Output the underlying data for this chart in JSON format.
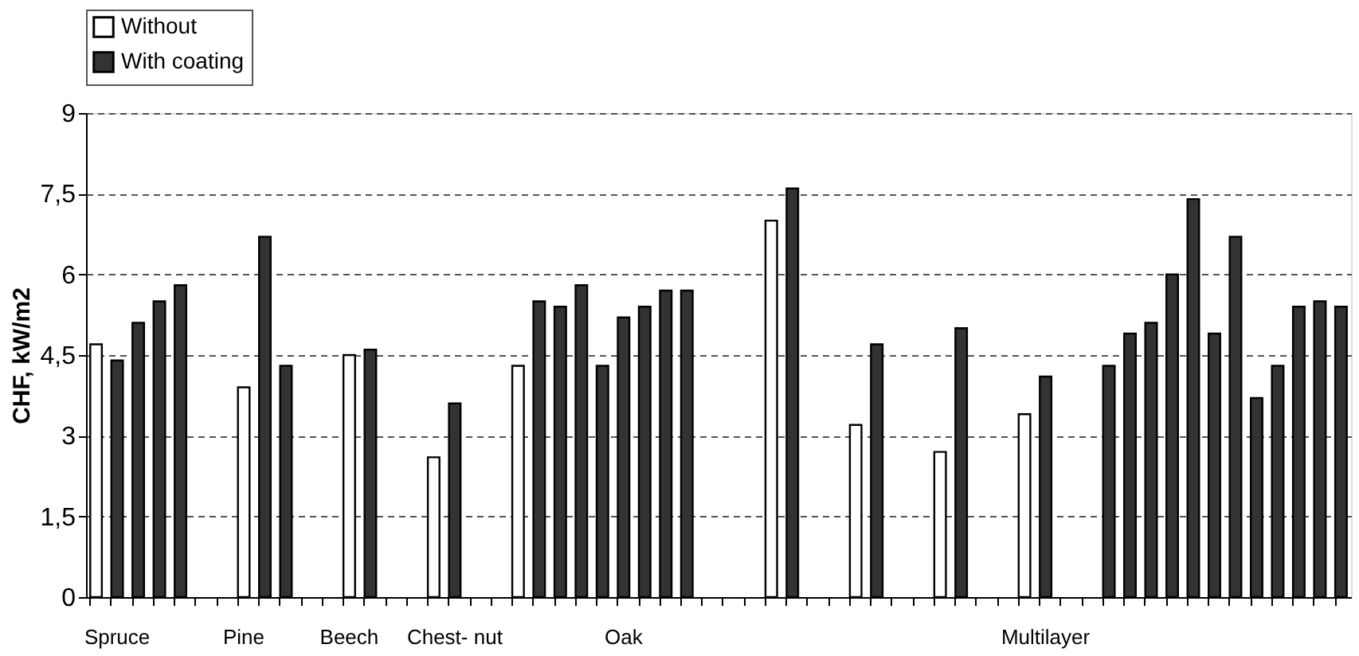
{
  "chart_data": {
    "type": "bar",
    "ylabel": "CHF, kW/m2",
    "categories": [
      null,
      "Spruce",
      null,
      null,
      null,
      null,
      null,
      "Pine",
      null,
      null,
      null,
      null,
      "Beech",
      null,
      null,
      null,
      null,
      "Chest-\nnut",
      null,
      null,
      null,
      null,
      null,
      null,
      null,
      "Oak",
      null,
      null,
      null,
      null,
      null,
      null,
      null,
      null,
      null,
      null,
      null,
      null,
      null,
      null,
      null,
      null,
      null,
      null,
      null,
      "Multilayer",
      null,
      null,
      null,
      null,
      null,
      null,
      null,
      null,
      null,
      null,
      null,
      null,
      null,
      null
    ],
    "series": [
      {
        "name": "Without",
        "color": "#ffffff",
        "values": [
          4.7,
          null,
          null,
          null,
          null,
          null,
          null,
          3.9,
          null,
          null,
          null,
          null,
          4.5,
          null,
          null,
          null,
          2.6,
          null,
          null,
          null,
          4.3,
          null,
          null,
          null,
          null,
          null,
          null,
          null,
          null,
          null,
          null,
          null,
          7.0,
          null,
          null,
          null,
          3.2,
          null,
          null,
          null,
          2.7,
          null,
          null,
          null,
          3.4,
          null,
          null,
          null,
          null,
          null,
          null,
          null,
          null,
          null,
          null,
          null,
          null,
          null,
          null,
          null
        ]
      },
      {
        "name": "With coating",
        "color": "#333333",
        "values": [
          null,
          4.4,
          5.1,
          5.5,
          5.8,
          null,
          null,
          null,
          6.7,
          4.3,
          null,
          null,
          null,
          4.6,
          null,
          null,
          null,
          3.6,
          null,
          null,
          null,
          5.5,
          5.4,
          5.8,
          4.3,
          5.2,
          5.4,
          5.7,
          5.7,
          null,
          null,
          null,
          null,
          7.6,
          null,
          null,
          null,
          4.7,
          null,
          null,
          null,
          5.0,
          null,
          null,
          null,
          4.1,
          null,
          null,
          4.3,
          4.9,
          5.1,
          6.0,
          7.4,
          4.9,
          6.7,
          3.7,
          4.3,
          5.4,
          5.5,
          5.4
        ]
      }
    ],
    "ylim": [
      0,
      9
    ],
    "yticks": [
      0,
      {
        "value": 1.5,
        "label": "1,5"
      },
      3,
      {
        "value": 4.5,
        "label": "4,5"
      },
      6,
      {
        "value": 7.5,
        "label": "7,5"
      },
      9
    ],
    "grid": "y",
    "legend": "top"
  }
}
